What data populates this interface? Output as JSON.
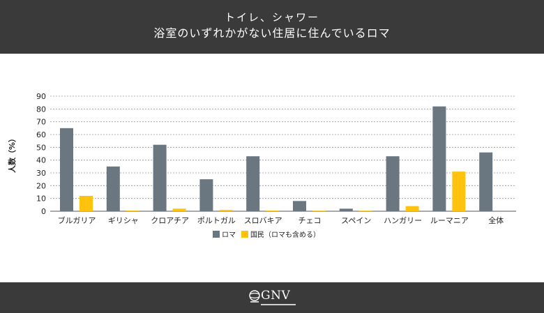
{
  "header": {
    "title_line1": "トイレ、シャワー",
    "title_line2": "浴室のいずれかがない住居に住んでいるロマ"
  },
  "footer": {
    "logo_text": "GNV",
    "logo_icon": "globe-icon"
  },
  "colors": {
    "header_bg": "#3a3a3a",
    "roma": "#6a7680",
    "national": "#ffc20e",
    "grid": "#999999"
  },
  "chart_data": {
    "type": "bar",
    "title": "トイレ、シャワー\n浴室のいずれかがない住居に住んでいるロマ",
    "xlabel": "",
    "ylabel": "人数（%）",
    "ylim": [
      0,
      90
    ],
    "yticks": [
      0,
      10,
      20,
      30,
      40,
      50,
      60,
      70,
      80,
      90
    ],
    "grid": true,
    "legend_position": "bottom",
    "categories": [
      "ブルガリア",
      "ギリシャ",
      "クロアチア",
      "ポルトガル",
      "スロバキア",
      "チェコ",
      "スペイン",
      "ハンガリー",
      "ルーマニア",
      "全体"
    ],
    "series": [
      {
        "name": "ロマ",
        "color": "#6a7680",
        "values": [
          65,
          35,
          52,
          25,
          43,
          8,
          2,
          43,
          82,
          46
        ]
      },
      {
        "name": "国民（ロマも含める）",
        "color": "#ffc20e",
        "values": [
          12,
          0.5,
          2,
          1,
          0.5,
          0.2,
          0.2,
          4,
          31,
          null
        ]
      }
    ]
  }
}
